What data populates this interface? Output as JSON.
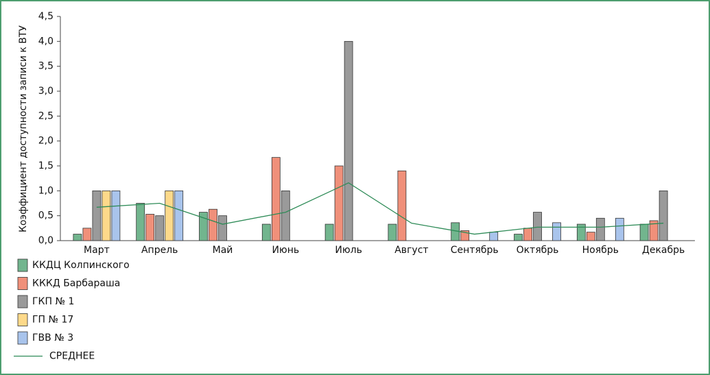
{
  "chart_data": {
    "type": "bar",
    "y_label": "Коэффициент доступности записи к ВТУ",
    "categories": [
      "Март",
      "Апрель",
      "Май",
      "Июнь",
      "Июль",
      "Август",
      "Сентябрь",
      "Октябрь",
      "Ноябрь",
      "Декабрь"
    ],
    "series": [
      {
        "name": "ККДЦ Колпинского",
        "color": "#72b58e",
        "values": [
          0.13,
          0.75,
          0.57,
          0.33,
          0.33,
          0.33,
          0.36,
          0.13,
          0.33,
          0.33
        ]
      },
      {
        "name": "КККД Барбараша",
        "color": "#f0907a",
        "values": [
          0.25,
          0.53,
          0.63,
          1.67,
          1.5,
          1.4,
          0.2,
          0.25,
          0.17,
          0.4
        ]
      },
      {
        "name": "ГКП № 1",
        "color": "#9a9a9a",
        "values": [
          1.0,
          0.5,
          0.5,
          1.0,
          4.0,
          null,
          null,
          0.57,
          0.45,
          1.0
        ]
      },
      {
        "name": "ГП № 17",
        "color": "#fdd98a",
        "values": [
          1.0,
          1.0,
          null,
          null,
          null,
          null,
          null,
          null,
          null,
          null
        ]
      },
      {
        "name": "ГВВ № 3",
        "color": "#a9c4ec",
        "values": [
          1.0,
          1.0,
          null,
          null,
          null,
          null,
          0.17,
          0.36,
          0.45,
          null
        ]
      },
      {
        "name": "СРЕДНЕЕ",
        "type": "line",
        "color": "#2e8b57",
        "values": [
          0.67,
          0.75,
          0.33,
          0.57,
          1.16,
          0.35,
          0.13,
          0.27,
          0.27,
          0.35
        ]
      }
    ],
    "ylim": [
      0,
      4.5
    ],
    "yticks": [
      {
        "value": 0,
        "label": "0,0"
      },
      {
        "value": 0.5,
        "label": "0,5"
      },
      {
        "value": 1,
        "label": "1,0"
      },
      {
        "value": 1.5,
        "label": "1,5"
      },
      {
        "value": 2,
        "label": "2,0"
      },
      {
        "value": 2.5,
        "label": "2,5"
      },
      {
        "value": 3,
        "label": "3,0"
      },
      {
        "value": 3.5,
        "label": "3,5"
      },
      {
        "value": 4,
        "label": "4,0"
      },
      {
        "value": 4.5,
        "label": "4,5"
      }
    ]
  }
}
